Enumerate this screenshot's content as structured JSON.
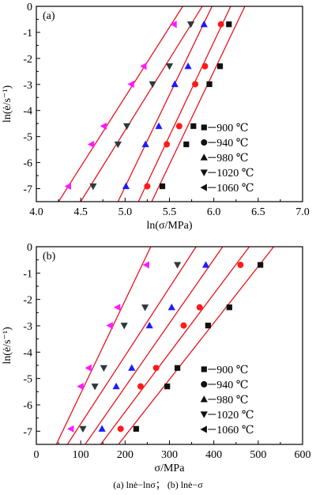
{
  "caption": "(a)  lnė−lnσ； (b)  lnė−σ",
  "colors": {
    "fit_line": "#e8141e",
    "markers": {
      "900": "#111111",
      "940": "#ff1a1a",
      "980": "#1c1cff",
      "1020": "#2d3a3a",
      "1060": "#ff1aff"
    }
  },
  "chart_data": [
    {
      "type": "scatter",
      "panel_label": "(a)",
      "xlabel": "ln(σ/MPa)",
      "ylabel": "ln(ė/s⁻¹)",
      "xlim": [
        4.0,
        7.0
      ],
      "ylim": [
        -7.5,
        0
      ],
      "xticks": [
        "4.0",
        "4.5",
        "5.0",
        "5.5",
        "6.0",
        "6.5",
        "7.0"
      ],
      "yticks": [
        "0",
        "-1",
        "-2",
        "-3",
        "-4",
        "-5",
        "-6",
        "-7"
      ],
      "grid": false,
      "legend_position": "right",
      "series": [
        {
          "name": "900 ℃",
          "marker": "square",
          "color": "#111111",
          "x": [
            5.42,
            5.69,
            5.77,
            5.95,
            6.07,
            6.17
          ],
          "y": [
            -6.91,
            -5.3,
            -4.6,
            -2.99,
            -2.3,
            -0.69
          ],
          "fit": [
            [
              5.3,
              -7.5
            ],
            [
              6.35,
              0
            ]
          ]
        },
        {
          "name": "940 ℃",
          "marker": "circle",
          "color": "#ff1a1a",
          "x": [
            5.25,
            5.47,
            5.61,
            5.79,
            5.9,
            6.08
          ],
          "y": [
            -6.91,
            -5.3,
            -4.6,
            -2.99,
            -2.3,
            -0.69
          ],
          "fit": [
            [
              5.15,
              -7.5
            ],
            [
              6.19,
              0
            ]
          ]
        },
        {
          "name": "980 ℃",
          "marker": "triangle-up",
          "color": "#1c1cff",
          "x": [
            5.01,
            5.23,
            5.38,
            5.56,
            5.71,
            5.89
          ],
          "y": [
            -6.91,
            -5.3,
            -4.6,
            -2.99,
            -2.3,
            -0.69
          ],
          "fit": [
            [
              4.92,
              -7.5
            ],
            [
              5.98,
              0
            ]
          ]
        },
        {
          "name": "1020 ℃",
          "marker": "triangle-down",
          "color": "#2d3a3a",
          "x": [
            4.64,
            4.92,
            5.02,
            5.31,
            5.5,
            5.74
          ],
          "y": [
            -6.91,
            -5.3,
            -4.6,
            -2.99,
            -2.3,
            -0.69
          ],
          "fit": [
            [
              4.5,
              -7.5
            ],
            [
              5.87,
              0
            ]
          ]
        },
        {
          "name": "1060 ℃",
          "marker": "triangle-left",
          "color": "#ff1aff",
          "x": [
            4.36,
            4.62,
            4.76,
            5.07,
            5.21,
            5.55
          ],
          "y": [
            -6.91,
            -5.3,
            -4.6,
            -2.99,
            -2.3,
            -0.69
          ],
          "fit": [
            [
              4.25,
              -7.5
            ],
            [
              5.65,
              0
            ]
          ]
        }
      ]
    },
    {
      "type": "scatter",
      "panel_label": "(b)",
      "xlabel": "σ/MPa",
      "ylabel": "ln(ė/s⁻¹)",
      "xlim": [
        0,
        600
      ],
      "ylim": [
        -7.5,
        0
      ],
      "xticks": [
        "0",
        "100",
        "200",
        "300",
        "400",
        "500",
        "600"
      ],
      "yticks": [
        "0",
        "-1",
        "-2",
        "-3",
        "-4",
        "-5",
        "-6",
        "-7"
      ],
      "grid": false,
      "legend_position": "right",
      "series": [
        {
          "name": "900 ℃",
          "marker": "square",
          "color": "#111111",
          "x": [
            225,
            295,
            318,
            387,
            435,
            505
          ],
          "y": [
            -6.91,
            -5.3,
            -4.6,
            -2.99,
            -2.3,
            -0.69
          ],
          "fit": [
            [
              185,
              -7.5
            ],
            [
              535,
              0
            ]
          ]
        },
        {
          "name": "940 ℃",
          "marker": "circle",
          "color": "#ff1a1a",
          "x": [
            190,
            235,
            270,
            332,
            368,
            460
          ],
          "y": [
            -6.91,
            -5.3,
            -4.6,
            -2.99,
            -2.3,
            -0.69
          ],
          "fit": [
            [
              145,
              -7.5
            ],
            [
              480,
              0
            ]
          ]
        },
        {
          "name": "980 ℃",
          "marker": "triangle-up",
          "color": "#1c1cff",
          "x": [
            148,
            180,
            215,
            255,
            305,
            382
          ],
          "y": [
            -6.91,
            -5.3,
            -4.6,
            -2.99,
            -2.3,
            -0.69
          ],
          "fit": [
            [
              110,
              -7.5
            ],
            [
              420,
              0
            ]
          ]
        },
        {
          "name": "1020 ℃",
          "marker": "triangle-down",
          "color": "#2d3a3a",
          "x": [
            105,
            132,
            152,
            198,
            245,
            318
          ],
          "y": [
            -6.91,
            -5.3,
            -4.6,
            -2.99,
            -2.3,
            -0.69
          ],
          "fit": [
            [
              70,
              -7.5
            ],
            [
              360,
              0
            ]
          ]
        },
        {
          "name": "1060 ℃",
          "marker": "triangle-left",
          "color": "#ff1aff",
          "x": [
            78,
            100,
            118,
            166,
            183,
            248
          ],
          "y": [
            -6.91,
            -5.3,
            -4.6,
            -2.99,
            -2.3,
            -0.69
          ],
          "fit": [
            [
              45,
              -7.5
            ],
            [
              258,
              0
            ]
          ]
        }
      ]
    }
  ]
}
